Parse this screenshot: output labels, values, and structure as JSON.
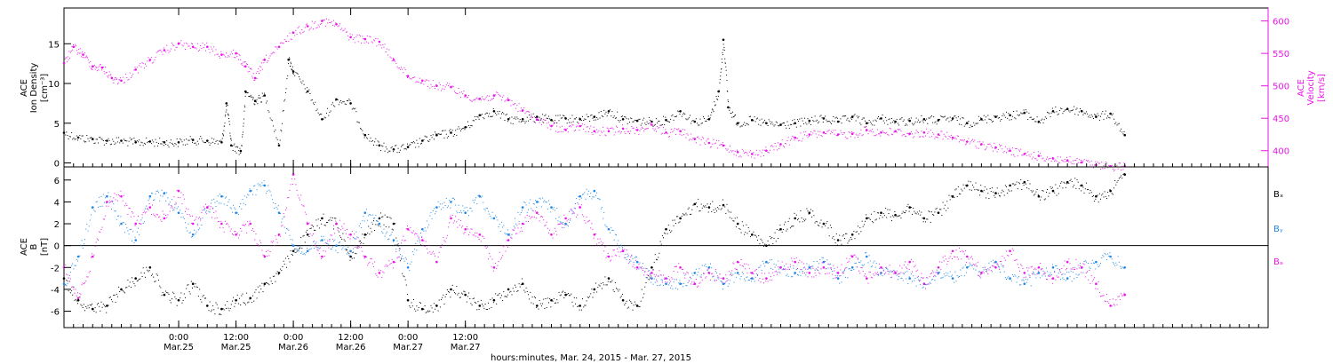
{
  "chart_data": [
    {
      "type": "scatter",
      "panel": "top",
      "y_left_label": [
        "ACE",
        "Ion Density",
        "[cm⁻³]"
      ],
      "y_right_label": [
        "ACE",
        "Velocity",
        "[km/s]"
      ],
      "y_left_ticks": [
        "0",
        "5",
        "10",
        "15"
      ],
      "y_right_ticks": [
        "400",
        "450",
        "500",
        "550",
        "600"
      ],
      "ylim_left": [
        -0.5,
        19.5
      ],
      "ylim_right": [
        375,
        620
      ],
      "right_axis_color": "#e815e8",
      "grid": false,
      "series": [
        {
          "axis": "left",
          "color": "#000000",
          "x": [
            0,
            3,
            6,
            9,
            12,
            15,
            18,
            21,
            24,
            27,
            30,
            33,
            34,
            35,
            37,
            38,
            40,
            42,
            45,
            47,
            48,
            51,
            54,
            57,
            60,
            63,
            66,
            69,
            72,
            75,
            78,
            81,
            84,
            87,
            90,
            93,
            96,
            99,
            102,
            105,
            108,
            111,
            114,
            117,
            120,
            123,
            126,
            129,
            132,
            135,
            137,
            138,
            139,
            141,
            144,
            147,
            150,
            153,
            156,
            159,
            162,
            165,
            168,
            171,
            174,
            177,
            180,
            183,
            186,
            189,
            192,
            195,
            198,
            201,
            204,
            207,
            210,
            213,
            216,
            219,
            222
          ],
          "y": [
            3.8,
            3.2,
            3.0,
            2.8,
            2.8,
            2.6,
            2.7,
            2.6,
            2.6,
            2.9,
            2.8,
            2.6,
            7.5,
            2.2,
            1.5,
            9.0,
            7.8,
            8.5,
            2.2,
            13.0,
            11.5,
            9.0,
            5.5,
            8.0,
            7.5,
            3.5,
            2.2,
            1.7,
            2.0,
            2.8,
            3.5,
            3.8,
            4.5,
            6.0,
            6.5,
            5.5,
            5.5,
            5.8,
            5.4,
            5.6,
            5.5,
            5.8,
            6.5,
            5.5,
            5.3,
            5.2,
            5.4,
            6.5,
            5.2,
            5.5,
            9.0,
            15.5,
            7.0,
            5.0,
            5.4,
            5.0,
            4.8,
            5.0,
            5.3,
            5.6,
            5.2,
            5.8,
            5.0,
            5.6,
            5.2,
            5.3,
            5.5,
            5.4,
            5.6,
            5.0,
            5.5,
            5.8,
            6.0,
            6.3,
            5.2,
            6.5,
            6.8,
            6.5,
            5.8,
            6.2,
            3.5
          ]
        },
        {
          "axis": "right",
          "color": "#e815e8",
          "x": [
            0,
            2,
            4,
            6,
            8,
            10,
            12,
            15,
            18,
            21,
            24,
            27,
            30,
            33,
            36,
            38,
            40,
            42,
            45,
            48,
            51,
            54,
            57,
            60,
            63,
            66,
            69,
            72,
            75,
            78,
            81,
            84,
            87,
            90,
            93,
            96,
            99,
            102,
            105,
            108,
            111,
            114,
            117,
            120,
            123,
            126,
            129,
            132,
            135,
            138,
            141,
            144,
            147,
            150,
            153,
            156,
            159,
            162,
            165,
            168,
            171,
            174,
            177,
            180,
            183,
            186,
            189,
            192,
            195,
            198,
            201,
            204,
            207,
            210,
            213,
            216,
            219,
            222
          ],
          "y": [
            535,
            560,
            548,
            530,
            528,
            512,
            508,
            525,
            540,
            555,
            565,
            560,
            560,
            548,
            550,
            530,
            512,
            540,
            560,
            582,
            592,
            600,
            595,
            575,
            572,
            568,
            540,
            515,
            508,
            500,
            498,
            485,
            480,
            485,
            478,
            462,
            448,
            438,
            432,
            438,
            430,
            430,
            434,
            432,
            440,
            428,
            430,
            418,
            412,
            408,
            398,
            395,
            400,
            410,
            420,
            425,
            428,
            425,
            426,
            432,
            428,
            430,
            426,
            428,
            425,
            420,
            414,
            410,
            405,
            400,
            395,
            392,
            388,
            385,
            382,
            378,
            376,
            376
          ]
        }
      ]
    },
    {
      "type": "scatter",
      "panel": "bottom",
      "y_left_label": [
        "ACE",
        "B",
        "[nT]"
      ],
      "y_left_ticks": [
        "-6",
        "-4",
        "-2",
        "0",
        "2",
        "4",
        "6"
      ],
      "ylim": [
        -7.5,
        7.2
      ],
      "zero_line": true,
      "grid": false,
      "legend_position": "right",
      "series": [
        {
          "name": "Bₓ",
          "color": "#000000",
          "x": [
            0,
            3,
            6,
            9,
            12,
            15,
            18,
            21,
            24,
            27,
            30,
            33,
            36,
            39,
            42,
            45,
            48,
            51,
            54,
            57,
            60,
            63,
            66,
            69,
            72,
            75,
            78,
            81,
            84,
            87,
            90,
            93,
            96,
            99,
            102,
            105,
            108,
            111,
            114,
            117,
            120,
            123,
            126,
            129,
            132,
            135,
            138,
            141,
            144,
            147,
            150,
            153,
            156,
            159,
            162,
            165,
            168,
            171,
            174,
            177,
            180,
            183,
            186,
            189,
            192,
            195,
            198,
            201,
            204,
            207,
            210,
            213,
            216,
            219,
            222
          ],
          "y": [
            -3.0,
            -5.0,
            -5.8,
            -5.5,
            -4.0,
            -3.0,
            -2.0,
            -4.5,
            -5.0,
            -3.5,
            -5.5,
            -5.8,
            -5.0,
            -4.8,
            -3.5,
            -2.5,
            -0.5,
            1.0,
            2.5,
            2.0,
            -1.0,
            1.0,
            2.5,
            2.0,
            -5.0,
            -5.8,
            -5.5,
            -4.0,
            -4.5,
            -5.5,
            -5.0,
            -4.0,
            -3.5,
            -5.5,
            -5.0,
            -4.5,
            -5.5,
            -4.0,
            -3.0,
            -5.0,
            -5.5,
            -2.0,
            1.5,
            2.5,
            3.8,
            3.5,
            3.7,
            2.0,
            1.0,
            0.0,
            1.5,
            2.5,
            3.0,
            2.0,
            0.5,
            1.0,
            2.5,
            3.0,
            2.8,
            3.5,
            2.5,
            3.0,
            4.5,
            5.5,
            5.0,
            4.8,
            5.5,
            5.8,
            4.5,
            5.0,
            5.8,
            5.5,
            4.5,
            5.0,
            6.5
          ]
        },
        {
          "name": "Bᵧ",
          "color": "#1e87e6",
          "x": [
            0,
            3,
            6,
            9,
            12,
            15,
            18,
            21,
            24,
            27,
            30,
            33,
            36,
            39,
            42,
            45,
            48,
            51,
            54,
            57,
            60,
            63,
            66,
            69,
            72,
            75,
            78,
            81,
            84,
            87,
            90,
            93,
            96,
            99,
            102,
            105,
            108,
            111,
            114,
            117,
            120,
            123,
            126,
            129,
            132,
            135,
            138,
            141,
            144,
            147,
            150,
            153,
            156,
            159,
            162,
            165,
            168,
            171,
            174,
            177,
            180,
            183,
            186,
            189,
            192,
            195,
            198,
            201,
            204,
            207,
            210,
            213,
            216,
            219,
            222
          ],
          "y": [
            -3.5,
            -1.0,
            3.5,
            4.5,
            2.0,
            0.5,
            4.5,
            4.8,
            3.0,
            1.0,
            3.5,
            4.5,
            3.0,
            5.0,
            5.5,
            3.0,
            0.0,
            -0.5,
            0.5,
            0.0,
            -0.5,
            3.0,
            2.0,
            0.5,
            -2.0,
            1.5,
            3.5,
            4.0,
            3.0,
            4.5,
            2.5,
            1.0,
            3.5,
            4.0,
            3.5,
            2.0,
            4.5,
            5.0,
            1.5,
            -0.5,
            -1.5,
            -3.0,
            -3.5,
            -3.5,
            -2.5,
            -2.0,
            -3.5,
            -2.5,
            -3.0,
            -1.5,
            -2.0,
            -2.5,
            -2.0,
            -1.5,
            -3.0,
            -2.0,
            -1.0,
            -2.5,
            -2.5,
            -3.0,
            -3.5,
            -2.5,
            -3.0,
            -2.0,
            -2.5,
            -1.5,
            -3.0,
            -3.5,
            -2.5,
            -2.0,
            -3.0,
            -2.0,
            -1.5,
            -1.0,
            -2.0
          ]
        },
        {
          "name": "Bₔ",
          "color": "#e815e8",
          "x": [
            0,
            3,
            6,
            9,
            12,
            15,
            18,
            21,
            24,
            27,
            30,
            33,
            36,
            39,
            42,
            45,
            48,
            51,
            54,
            57,
            60,
            63,
            66,
            69,
            72,
            75,
            78,
            81,
            84,
            87,
            90,
            93,
            96,
            99,
            102,
            105,
            108,
            111,
            114,
            117,
            120,
            123,
            126,
            129,
            132,
            135,
            138,
            141,
            144,
            147,
            150,
            153,
            156,
            159,
            162,
            165,
            168,
            171,
            174,
            177,
            180,
            183,
            186,
            189,
            192,
            195,
            198,
            201,
            204,
            207,
            210,
            213,
            216,
            219,
            222
          ],
          "y": [
            -2.0,
            -4.8,
            -1.0,
            4.0,
            4.5,
            2.0,
            3.5,
            2.5,
            5.0,
            2.0,
            3.5,
            2.0,
            1.0,
            2.0,
            -1.0,
            1.0,
            6.5,
            2.0,
            -1.0,
            2.0,
            1.0,
            -1.0,
            -2.5,
            -1.5,
            1.5,
            0.5,
            -1.5,
            2.5,
            1.5,
            1.0,
            -2.0,
            0.5,
            2.0,
            3.0,
            1.0,
            2.5,
            3.5,
            1.0,
            -1.0,
            -0.5,
            -2.0,
            -2.5,
            -3.0,
            -2.0,
            -3.5,
            -2.5,
            -3.0,
            -1.5,
            -2.5,
            -3.0,
            -2.0,
            -1.5,
            -2.5,
            -2.0,
            -2.5,
            -1.0,
            -3.0,
            -2.0,
            -2.5,
            -1.5,
            -3.5,
            -2.0,
            -0.5,
            -1.0,
            -2.5,
            -2.0,
            -0.5,
            -2.5,
            -2.0,
            -3.0,
            -1.5,
            -2.0,
            -3.5,
            -5.5,
            -4.5
          ]
        }
      ]
    }
  ],
  "x_axis": {
    "xlim_hours": [
      0,
      252
    ],
    "ticks": [
      {
        "time": "0:00",
        "date": "Mar.25",
        "hour": 24
      },
      {
        "time": "12:00",
        "date": "Mar.25",
        "hour": 36
      },
      {
        "time": "0:00",
        "date": "Mar.26",
        "hour": 48
      },
      {
        "time": "12:00",
        "date": "Mar.26",
        "hour": 60
      },
      {
        "time": "0:00",
        "date": "Mar.27",
        "hour": 72
      },
      {
        "time": "12:00",
        "date": "Mar.27",
        "hour": 84
      }
    ],
    "label": "hours:minutes, Mar. 24, 2015 - Mar. 27, 2015"
  },
  "colors": {
    "black": "#000000",
    "blue": "#1e87e6",
    "magenta": "#e815e8"
  }
}
